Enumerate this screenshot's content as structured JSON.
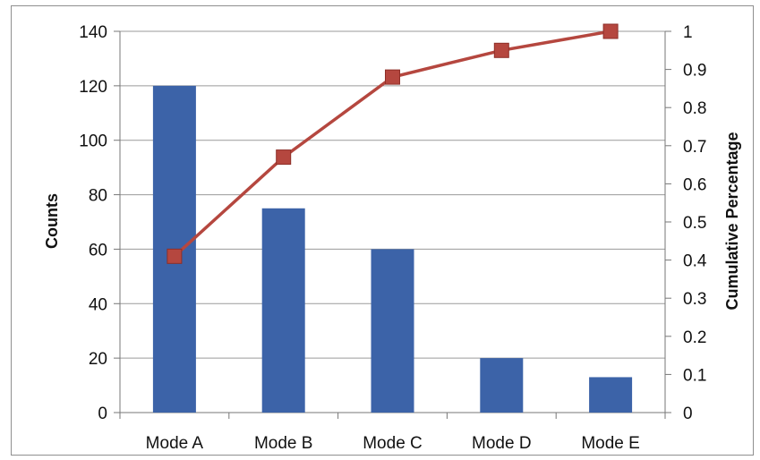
{
  "chart_data": {
    "type": "bar",
    "categories": [
      "Mode A",
      "Mode B",
      "Mode C",
      "Mode D",
      "Mode E"
    ],
    "series": [
      {
        "values": [
          120,
          75,
          60,
          20,
          13
        ],
        "axis": "left",
        "type": "bar",
        "color": "#3C63A8"
      },
      {
        "values": [
          0.41,
          0.67,
          0.88,
          0.95,
          1.0
        ],
        "axis": "right",
        "type": "line",
        "marker": "square",
        "color": "#B5473F"
      }
    ],
    "ylabel": "Counts",
    "y2label": "Cumulative Percentage",
    "ylim": [
      0,
      140
    ],
    "y2lim": [
      0,
      1
    ],
    "yticks": [
      "0",
      "20",
      "40",
      "60",
      "80",
      "100",
      "120",
      "140"
    ],
    "y2ticks": [
      "0",
      "0.1",
      "0.2",
      "0.3",
      "0.4",
      "0.5",
      "0.6",
      "0.7",
      "0.8",
      "0.9",
      "1"
    ],
    "grid": true,
    "legend": "none"
  }
}
